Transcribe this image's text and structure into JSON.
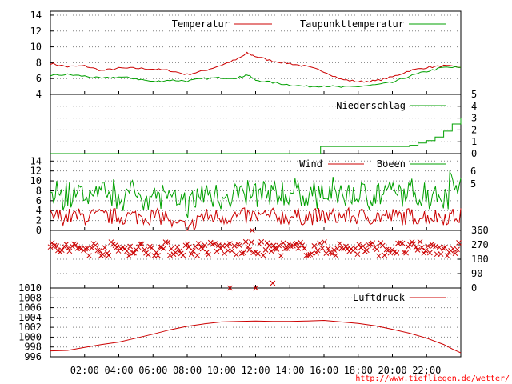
{
  "footer_url": "http://www.tiefliegen.de/wetter/",
  "x_ticks": [
    "02:00",
    "04:00",
    "06:00",
    "08:00",
    "10:00",
    "12:00",
    "14:00",
    "16:00",
    "18:00",
    "20:00",
    "22:00"
  ],
  "colors": {
    "red": "#cc0000",
    "green": "#00a000",
    "grid": "#808080"
  },
  "chart_data": [
    {
      "type": "line",
      "x_range": [
        "00:00",
        "24:00"
      ],
      "ylim": [
        4,
        14.5
      ],
      "y_ticks": [
        "4",
        "6",
        "8",
        "10",
        "12",
        "14"
      ],
      "series": [
        {
          "name": "Temperatur",
          "color": "#cc0000",
          "x": [
            0,
            1,
            2,
            3,
            4,
            5,
            6,
            7,
            8,
            9,
            10,
            11,
            11.5,
            12,
            13,
            14,
            15,
            16,
            17,
            18,
            19,
            20,
            21,
            22,
            23,
            24
          ],
          "values": [
            7.9,
            7.5,
            7.6,
            7.0,
            7.3,
            7.3,
            7.2,
            7.0,
            6.5,
            7.0,
            7.7,
            8.5,
            9.2,
            8.8,
            8.2,
            7.9,
            7.5,
            6.9,
            5.9,
            5.6,
            5.7,
            6.2,
            7.0,
            7.4,
            7.6,
            7.4
          ]
        },
        {
          "name": "Taupunkttemperatur",
          "color": "#00a000",
          "x": [
            0,
            1,
            2,
            3,
            4,
            5,
            6,
            7,
            8,
            9,
            10,
            11,
            11.5,
            12,
            13,
            14,
            15,
            16,
            17,
            18,
            19,
            20,
            21,
            22,
            23,
            24
          ],
          "values": [
            6.4,
            6.5,
            6.3,
            6.0,
            6.2,
            6.0,
            5.6,
            5.8,
            5.7,
            6.0,
            6.1,
            6.1,
            6.5,
            5.8,
            5.5,
            5.2,
            5.0,
            5.1,
            4.9,
            5.0,
            5.2,
            5.5,
            6.3,
            6.9,
            7.4,
            7.4
          ]
        }
      ]
    },
    {
      "type": "line",
      "x_range": [
        "00:00",
        "24:00"
      ],
      "ylim": [
        0,
        5
      ],
      "y_ticks": [
        "0",
        "1",
        "2",
        "3",
        "4",
        "5"
      ],
      "series": [
        {
          "name": "Niederschlag",
          "color": "#00a000",
          "x": [
            0,
            15.6,
            15.8,
            20,
            21,
            21.5,
            22,
            22.5,
            23,
            23.5,
            24
          ],
          "values": [
            0,
            0,
            0.6,
            0.6,
            0.7,
            0.9,
            1.1,
            1.4,
            1.9,
            2.5,
            3.0
          ]
        }
      ]
    },
    {
      "type": "line",
      "x_range": [
        "00:00",
        "24:00"
      ],
      "ylim": [
        0,
        15.5
      ],
      "y_ticks": [
        "0",
        "2",
        "4",
        "6",
        "8",
        "10",
        "12",
        "14"
      ],
      "y2_ticks": [
        "5",
        "6"
      ],
      "series": [
        {
          "name": "Wind",
          "color": "#cc0000",
          "approx_mean": 3,
          "approx_max": 6
        },
        {
          "name": "Boeen",
          "color": "#00a000",
          "approx_mean": 6,
          "approx_max": 11
        }
      ]
    },
    {
      "type": "scatter",
      "x_range": [
        "00:00",
        "24:00"
      ],
      "ylim": [
        0,
        360
      ],
      "y_ticks": [
        "0",
        "90",
        "180",
        "270",
        "360"
      ],
      "series": [
        {
          "color": "#cc0000",
          "marker": "x",
          "typical_range": [
            180,
            300
          ],
          "outliers": [
            {
              "x": 10.5,
              "y": 0
            },
            {
              "x": 12,
              "y": 0
            },
            {
              "x": 13,
              "y": 30
            },
            {
              "x": 11.8,
              "y": 360
            }
          ]
        }
      ]
    },
    {
      "type": "line",
      "x_range": [
        "00:00",
        "24:00"
      ],
      "ylim": [
        996,
        1010
      ],
      "y_ticks": [
        "996",
        "998",
        "1000",
        "1002",
        "1004",
        "1006",
        "1008",
        "1010"
      ],
      "series": [
        {
          "name": "Luftdruck",
          "color": "#cc0000",
          "x": [
            0,
            1,
            2,
            3,
            4,
            5,
            6,
            7,
            8,
            9,
            10,
            11,
            12,
            13,
            14,
            15,
            16,
            17,
            18,
            19,
            20,
            21,
            22,
            23,
            23.5,
            24
          ],
          "values": [
            997.2,
            997.3,
            997.9,
            998.5,
            999.0,
            999.8,
            1000.6,
            1001.5,
            1002.2,
            1002.7,
            1003.1,
            1003.2,
            1003.3,
            1003.2,
            1003.2,
            1003.3,
            1003.4,
            1003.1,
            1002.8,
            1002.3,
            1001.6,
            1000.8,
            999.8,
            998.5,
            997.6,
            996.8
          ]
        }
      ]
    }
  ]
}
